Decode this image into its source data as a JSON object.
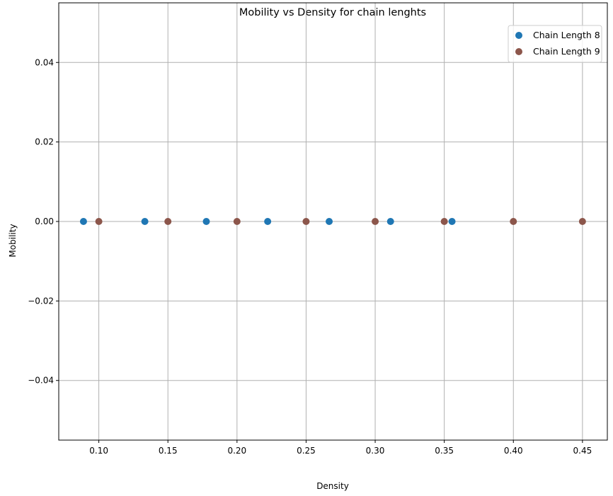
{
  "chart_data": {
    "type": "scatter",
    "title": "Mobility vs Density for chain lenghts",
    "xlabel": "Density",
    "ylabel": "Mobility",
    "xlim": [
      0.071,
      0.468
    ],
    "ylim": [
      -0.055,
      0.055
    ],
    "xticks": [
      0.1,
      0.15,
      0.2,
      0.25,
      0.3,
      0.35,
      0.4,
      0.45
    ],
    "xtick_labels": [
      "0.10",
      "0.15",
      "0.20",
      "0.25",
      "0.30",
      "0.35",
      "0.40",
      "0.45"
    ],
    "yticks": [
      -0.04,
      -0.02,
      0.0,
      0.02,
      0.04
    ],
    "ytick_labels": [
      "−0.04",
      "−0.02",
      "0.00",
      "0.02",
      "0.04"
    ],
    "grid": true,
    "legend_position": "top-right",
    "series": [
      {
        "name": "Chain Length 8",
        "color": "#1f77b4",
        "points": [
          {
            "x": 0.0889,
            "y": 0.0
          },
          {
            "x": 0.1333,
            "y": 0.0
          },
          {
            "x": 0.1778,
            "y": 0.0
          },
          {
            "x": 0.2222,
            "y": 0.0
          },
          {
            "x": 0.2667,
            "y": 0.0
          },
          {
            "x": 0.3111,
            "y": 0.0
          },
          {
            "x": 0.3556,
            "y": 0.0
          }
        ]
      },
      {
        "name": "Chain Length 9",
        "color": "#8c564b",
        "points": [
          {
            "x": 0.1,
            "y": 0.0
          },
          {
            "x": 0.15,
            "y": 0.0
          },
          {
            "x": 0.2,
            "y": 0.0
          },
          {
            "x": 0.25,
            "y": 0.0
          },
          {
            "x": 0.3,
            "y": 0.0
          },
          {
            "x": 0.35,
            "y": 0.0
          },
          {
            "x": 0.4,
            "y": 0.0
          },
          {
            "x": 0.45,
            "y": 0.0
          }
        ]
      }
    ]
  }
}
